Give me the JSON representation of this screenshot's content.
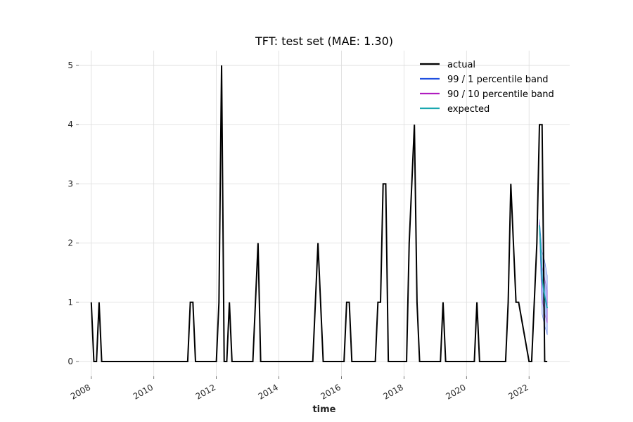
{
  "chart_data": {
    "type": "line",
    "title": "TFT: test set (MAE: 1.30)",
    "xlabel": "time",
    "ylabel": "",
    "xlim": [
      2007.6,
      2023.3
    ],
    "ylim": [
      -0.25,
      5.25
    ],
    "x_ticks": [
      2008,
      2010,
      2012,
      2014,
      2016,
      2018,
      2020,
      2022
    ],
    "x_tick_labels": [
      "2008",
      "2010",
      "2012",
      "2014",
      "2016",
      "2018",
      "2020",
      "2022"
    ],
    "y_ticks": [
      0,
      1,
      2,
      3,
      4,
      5
    ],
    "y_tick_labels": [
      "0",
      "1",
      "2",
      "3",
      "4",
      "5"
    ],
    "grid": true,
    "legend_position": "top-right",
    "colors": {
      "actual": "#000000",
      "band_99_1": "#1f4fe0",
      "band_90_10": "#b01cbf",
      "expected": "#1aa7b0",
      "band_fill": "#6f93f0"
    },
    "legend": [
      {
        "label": "actual",
        "color": "#000000"
      },
      {
        "label": "99 / 1 percentile band",
        "color": "#1f4fe0"
      },
      {
        "label": "90 / 10 percentile band",
        "color": "#b01cbf"
      },
      {
        "label": "expected",
        "color": "#1aa7b0"
      }
    ],
    "series": [
      {
        "name": "actual",
        "x": [
          2008.0,
          2008.083,
          2008.167,
          2008.25,
          2008.333,
          2011.083,
          2011.167,
          2011.25,
          2011.333,
          2012.0,
          2012.083,
          2012.167,
          2012.25,
          2012.333,
          2012.417,
          2012.5,
          2012.583,
          2013.167,
          2013.25,
          2013.333,
          2013.417,
          2015.083,
          2015.167,
          2015.25,
          2015.333,
          2015.417,
          2016.083,
          2016.167,
          2016.25,
          2016.333,
          2017.083,
          2017.167,
          2017.25,
          2017.333,
          2017.417,
          2017.5,
          2018.083,
          2018.167,
          2018.25,
          2018.333,
          2018.417,
          2018.5,
          2019.167,
          2019.25,
          2019.333,
          2020.25,
          2020.333,
          2020.417,
          2021.25,
          2021.333,
          2021.417,
          2021.5,
          2021.583,
          2021.667,
          2022.0,
          2022.083,
          2022.167,
          2022.25,
          2022.333,
          2022.417,
          2022.5,
          2022.583
        ],
        "y": [
          1,
          0,
          0,
          1,
          0,
          0,
          1,
          1,
          0,
          0,
          1,
          5,
          0,
          0,
          1,
          0,
          0,
          0,
          1,
          2,
          0,
          0,
          1,
          2,
          1,
          0,
          0,
          1,
          1,
          0,
          0,
          1,
          1,
          3,
          3,
          0,
          0,
          2,
          3,
          4,
          1,
          0,
          0,
          1,
          0,
          0,
          1,
          0,
          0,
          1,
          3,
          2,
          1,
          1,
          0,
          0,
          1,
          2,
          4,
          4,
          0,
          0
        ]
      },
      {
        "name": "expected",
        "x": [
          2022.333,
          2022.417,
          2022.5,
          2022.583
        ],
        "y": [
          2.3,
          1.4,
          1.1,
          0.9
        ]
      }
    ],
    "bands": [
      {
        "name": "99 / 1 percentile band",
        "x": [
          2022.333,
          2022.417,
          2022.5,
          2022.583
        ],
        "upper": [
          2.4,
          1.85,
          1.7,
          1.45
        ],
        "lower": [
          2.2,
          0.8,
          0.6,
          0.45
        ]
      },
      {
        "name": "90 / 10 percentile band",
        "x": [
          2022.333,
          2022.417,
          2022.5,
          2022.583
        ],
        "upper": [
          2.35,
          1.6,
          1.4,
          1.2
        ],
        "lower": [
          2.25,
          1.05,
          0.8,
          0.65
        ]
      }
    ]
  }
}
